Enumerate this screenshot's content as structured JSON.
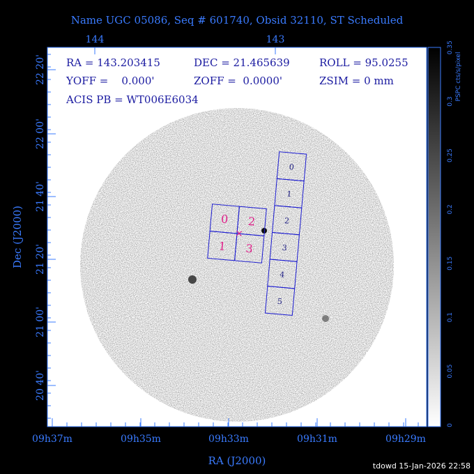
{
  "header": {
    "title": "Name UGC 05086, Seq # 601740, Obsid 32110, ST Scheduled"
  },
  "axes": {
    "top_labels": [
      "144",
      "143"
    ],
    "left_labels": [
      "22 20'",
      "22 00'",
      "21 40'",
      "21 20'",
      "21 00'",
      "20 40'"
    ],
    "bottom_labels": [
      "09h37m",
      "09h35m",
      "09h33m",
      "09h31m",
      "09h29m"
    ],
    "x_title": "RA (J2000)",
    "y_title": "Dec (J2000)"
  },
  "colorbar": {
    "label": "PSPC cts/s/pixel",
    "ticks": [
      "0",
      "0.05",
      "0.1",
      "0.15",
      "0.2",
      "0.25",
      "0.3",
      "0.35"
    ]
  },
  "info": {
    "ra": "RA = 143.203415",
    "dec": "DEC = 21.465639",
    "roll": "ROLL = 95.0255",
    "yoff": "YOFF =    0.000'",
    "zoff": "ZOFF =  0.0000'",
    "zsim": "ZSIM = 0 mm",
    "acis": "ACIS PB = WT006E6034"
  },
  "acis_i": [
    "0",
    "2",
    "1",
    "3"
  ],
  "acis_s": [
    "0",
    "1",
    "2",
    "3",
    "4",
    "5"
  ],
  "footer": "tdowd 15-Jan-2026 22:58"
}
